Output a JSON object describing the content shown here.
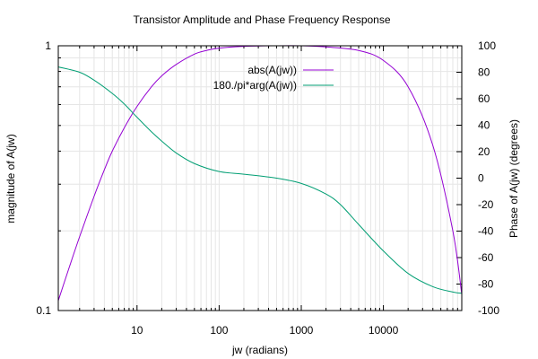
{
  "chart_data": {
    "type": "line",
    "title": "Transistor Amplitude and Phase Frequency Response",
    "xlabel": "jw (radians)",
    "ylabel": "magnitude of A(jw)",
    "y2label": "Phase of A(jw) (degrees)",
    "x_scale": "log",
    "y_scale": "log",
    "xlim": [
      1.1,
      90000
    ],
    "ylim": [
      0.1,
      1
    ],
    "y2lim": [
      -100,
      100
    ],
    "grid": true,
    "legend_position": "top-right",
    "xticks": [
      {
        "value": 10,
        "label": "10"
      },
      {
        "value": 100,
        "label": "100"
      },
      {
        "value": 1000,
        "label": "1000"
      },
      {
        "value": 10000,
        "label": "10000"
      }
    ],
    "yticks": [
      {
        "value": 0.1,
        "label": "0.1"
      },
      {
        "value": 1,
        "label": "1"
      }
    ],
    "y2ticks": [
      {
        "value": -100,
        "label": "-100"
      },
      {
        "value": -80,
        "label": "-80"
      },
      {
        "value": -60,
        "label": "-60"
      },
      {
        "value": -40,
        "label": "-40"
      },
      {
        "value": -20,
        "label": "-20"
      },
      {
        "value": 0,
        "label": "0"
      },
      {
        "value": 20,
        "label": "20"
      },
      {
        "value": 40,
        "label": "40"
      },
      {
        "value": 60,
        "label": "60"
      },
      {
        "value": 80,
        "label": "80"
      },
      {
        "value": 100,
        "label": "100"
      }
    ],
    "series": [
      {
        "name": "abs(A(jw))",
        "axis": "y",
        "color": "#9400d3",
        "x": [
          1.1,
          1.5,
          2,
          3,
          4,
          5,
          7,
          10,
          15,
          20,
          30,
          50,
          70,
          100,
          200,
          500,
          1000,
          2000,
          5000,
          10000,
          20000,
          40000,
          70000,
          90000
        ],
        "y": [
          0.109,
          0.146,
          0.19,
          0.27,
          0.34,
          0.4,
          0.49,
          0.59,
          0.7,
          0.77,
          0.85,
          0.93,
          0.96,
          0.98,
          0.995,
          1.0,
          1.0,
          0.99,
          0.96,
          0.88,
          0.7,
          0.42,
          0.2,
          0.115
        ]
      },
      {
        "name": "180./pi*arg(A(jw))",
        "axis": "y2",
        "color": "#009e73",
        "x": [
          1.1,
          2,
          3,
          5,
          7,
          10,
          15,
          20,
          30,
          50,
          100,
          200,
          500,
          1000,
          2000,
          3000,
          5000,
          10000,
          20000,
          40000,
          70000,
          90000
        ],
        "y": [
          84,
          80,
          74,
          64,
          56,
          46,
          35,
          28,
          19,
          11,
          5,
          3,
          0,
          -4,
          -12,
          -20,
          -35,
          -55,
          -72,
          -82,
          -86,
          -87
        ]
      }
    ]
  }
}
